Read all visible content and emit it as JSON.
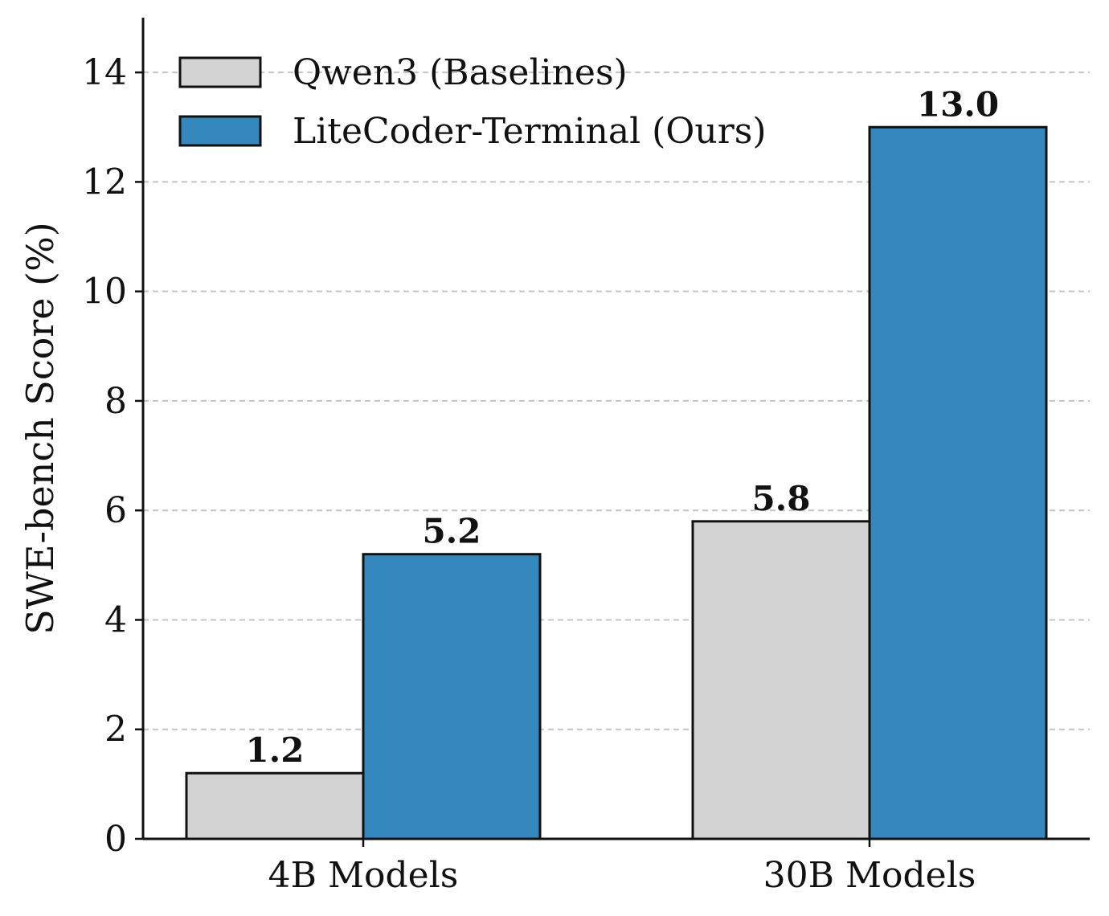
{
  "chart_data": {
    "type": "bar",
    "categories": [
      "4B Models",
      "30B Models"
    ],
    "series": [
      {
        "name": "Qwen3 (Baselines)",
        "values": [
          1.2,
          5.8
        ],
        "color": "#d3d3d3"
      },
      {
        "name": "LiteCoder-Terminal (Ours)",
        "values": [
          5.2,
          13.0
        ],
        "color": "#3588bd"
      }
    ],
    "data_labels": [
      [
        "1.2",
        "5.8"
      ],
      [
        "5.2",
        "13.0"
      ]
    ],
    "title": "",
    "xlabel": "",
    "ylabel": "SWE-bench Score (%)",
    "ylim": [
      0,
      15
    ],
    "yticks": [
      0,
      2,
      4,
      6,
      8,
      10,
      12,
      14
    ],
    "grid": "y-dashed",
    "legend_position": "top-left"
  }
}
